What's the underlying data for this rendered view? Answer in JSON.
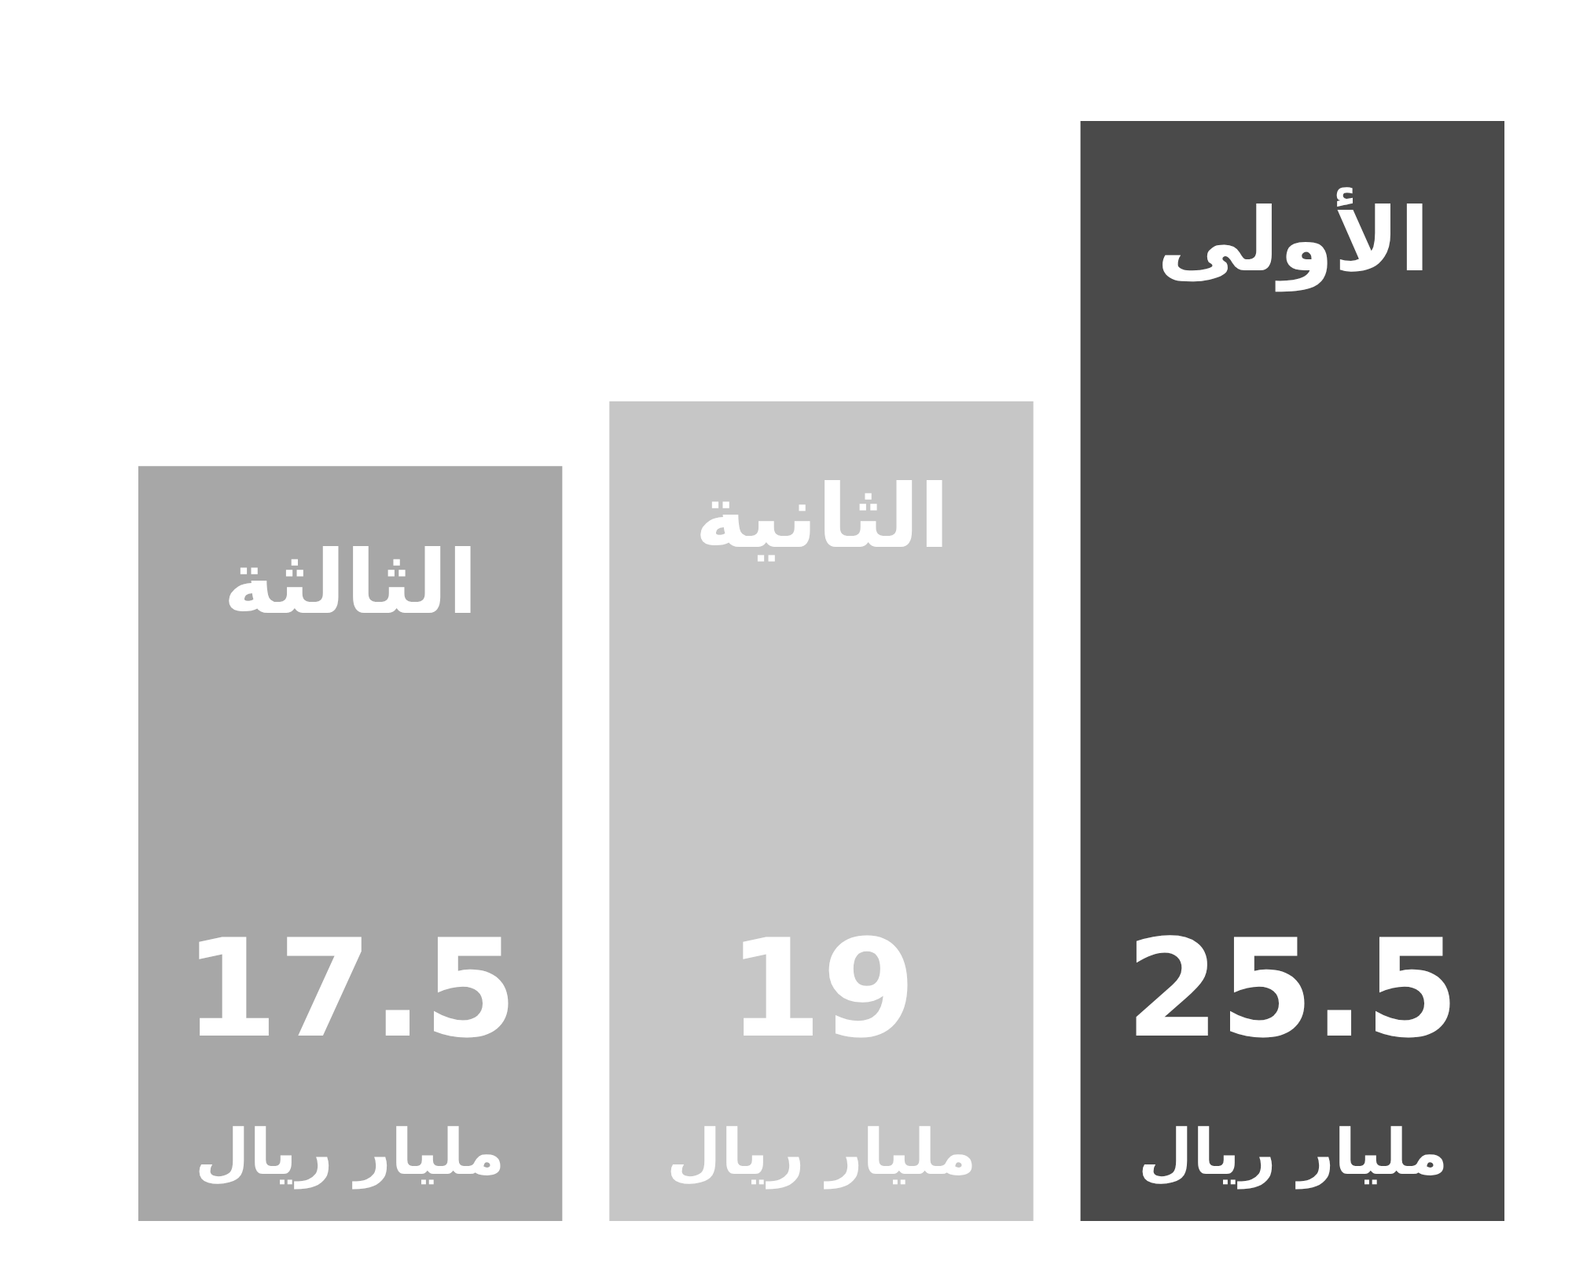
{
  "chart_data": {
    "type": "bar",
    "categories": [
      "الثالثة",
      "الثانية",
      "الأولى"
    ],
    "values": [
      17.5,
      19,
      25.5
    ],
    "colors": [
      "#a7a7a7",
      "#c6c6c6",
      "#4a4a4a"
    ],
    "value_labels": [
      "17.5\nمليار ريال",
      "19\nمليار ريال",
      "25.5\nمليار ريال"
    ],
    "tick_labels": false
  }
}
